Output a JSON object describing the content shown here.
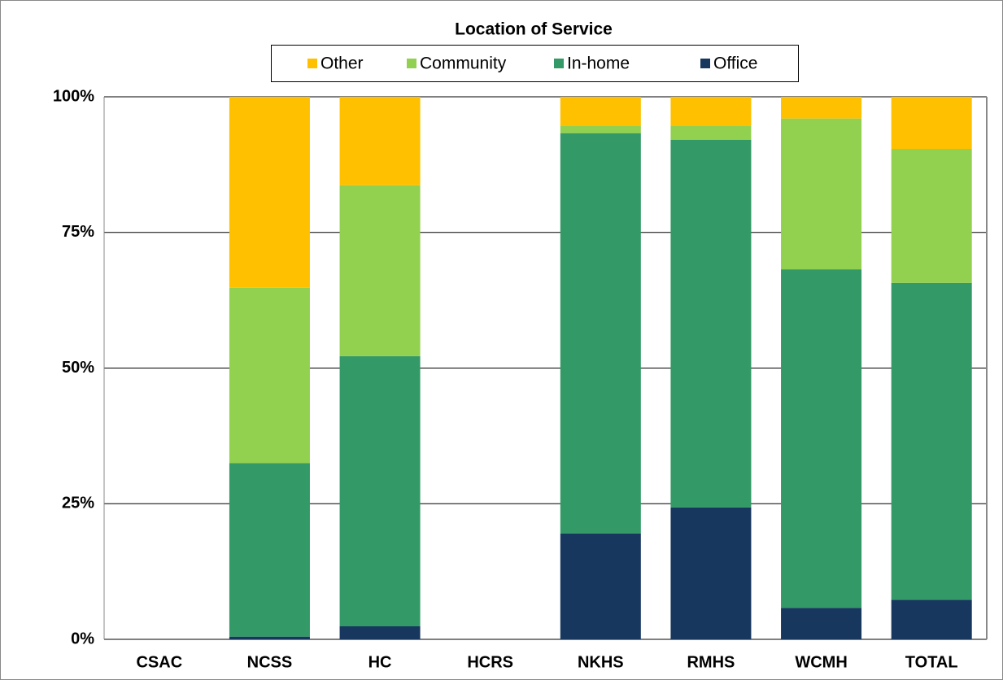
{
  "chart_data": {
    "type": "stacked_bar",
    "title": "Location of Service",
    "categories": [
      "CSAC",
      "NCSS",
      "HC",
      "HCRS",
      "NKHS",
      "RMHS",
      "WCMH",
      "TOTAL"
    ],
    "series": [
      {
        "name": "Office",
        "color": "#17375e",
        "values": [
          null,
          0.5,
          2.4,
          null,
          19.5,
          24.3,
          5.8,
          7.3
        ]
      },
      {
        "name": "In-home",
        "color": "#339966",
        "values": [
          null,
          32,
          49.8,
          null,
          73.8,
          67.8,
          62.4,
          58.4
        ]
      },
      {
        "name": "Community",
        "color": "#92d050",
        "values": [
          null,
          32.3,
          31.5,
          null,
          1.3,
          2.5,
          27.8,
          24.7
        ]
      },
      {
        "name": "Other",
        "color": "#ffc000",
        "values": [
          null,
          35.2,
          16.3,
          null,
          5.4,
          5.4,
          4.0,
          9.6
        ]
      }
    ],
    "ylim": [
      0,
      100
    ],
    "yticks": [
      {
        "value": 0,
        "label": "0%"
      },
      {
        "value": 25,
        "label": "25%"
      },
      {
        "value": 50,
        "label": "50%"
      },
      {
        "value": 75,
        "label": "75%"
      },
      {
        "value": 100,
        "label": "100%"
      }
    ],
    "grid": true
  }
}
